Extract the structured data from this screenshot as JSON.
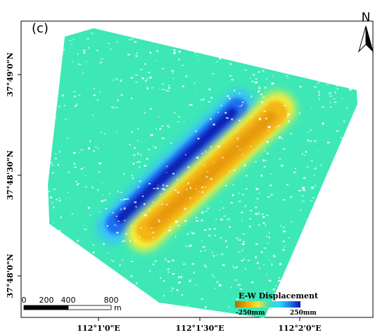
{
  "panel_label": "(c)",
  "north_arrow": {
    "letter": "N",
    "icon": "north-arrow-icon"
  },
  "axes": {
    "x_ticks": [
      "112°1'0\"E",
      "112°1'30\"E",
      "112°2'0\"E"
    ],
    "y_ticks": [
      "37°49'0\"N",
      "37°48'30\"N",
      "37°48'0\"N"
    ]
  },
  "scale_bar": {
    "labels": [
      "0",
      "200",
      "400",
      "800"
    ],
    "unit": "m"
  },
  "legend": {
    "title": "E-W Displacement",
    "min_label": "-250mm",
    "max_label": "250mm",
    "colors": [
      "#b06a00",
      "#f2a800",
      "#f4e23a",
      "#3fe0b0",
      "#2fd6ff",
      "#1f7be8",
      "#0a16b0"
    ]
  },
  "colors": {
    "background_field": "#3de8b6",
    "west_lobe_outer": "#39c3f7",
    "west_lobe_mid": "#1f6ff0",
    "west_lobe_core": "#0c22b8",
    "east_lobe_outer": "#f8ef3a",
    "east_lobe_mid": "#f3b618",
    "east_lobe_core": "#e89a10"
  }
}
